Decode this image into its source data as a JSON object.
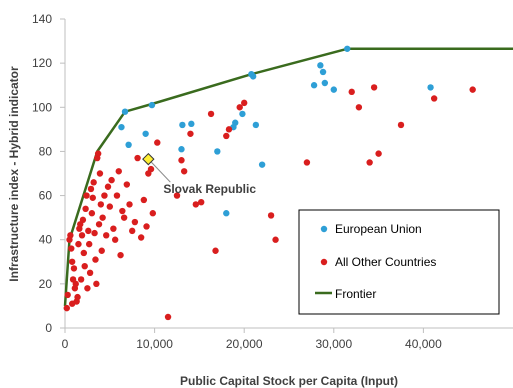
{
  "chart_data": {
    "type": "scatter",
    "xlabel": "Public Capital Stock per Capita (Input)",
    "ylabel": "Infrastructure index - Hybrid indicator",
    "xlim": [
      0,
      50000
    ],
    "ylim": [
      0,
      140
    ],
    "x_ticks": [
      0,
      10000,
      20000,
      30000,
      40000
    ],
    "x_tick_labels": [
      "0",
      "10,000",
      "20,000",
      "30,000",
      "40,000"
    ],
    "y_ticks": [
      0,
      20,
      40,
      60,
      80,
      100,
      120,
      140
    ],
    "y_tick_labels": [
      "0",
      "20",
      "40",
      "60",
      "80",
      "100",
      "120",
      "140"
    ],
    "grid": false,
    "legend_position": "bottom-right",
    "colors": {
      "eu": "#2e9fd6",
      "other": "#d91e1e",
      "frontier": "#3a6b1e",
      "highlight": "#ffef33",
      "axis": "#bfbfbf"
    },
    "series": [
      {
        "name": "European Union",
        "points": [
          [
            6300,
            91
          ],
          [
            6700,
            98
          ],
          [
            7100,
            83
          ],
          [
            9000,
            88
          ],
          [
            9700,
            101
          ],
          [
            13100,
            92
          ],
          [
            14100,
            92.5
          ],
          [
            13000,
            81
          ],
          [
            17000,
            80
          ],
          [
            18000,
            52
          ],
          [
            18800,
            91
          ],
          [
            19000,
            93
          ],
          [
            19800,
            97
          ],
          [
            20800,
            115
          ],
          [
            21000,
            114
          ],
          [
            21300,
            92
          ],
          [
            22000,
            74
          ],
          [
            27800,
            110
          ],
          [
            28500,
            119
          ],
          [
            28800,
            116
          ],
          [
            29000,
            111
          ],
          [
            30000,
            108
          ],
          [
            31500,
            126.5
          ],
          [
            40800,
            109
          ]
        ]
      },
      {
        "name": "All Other Countries",
        "points": [
          [
            200,
            9
          ],
          [
            300,
            15
          ],
          [
            500,
            40
          ],
          [
            600,
            42
          ],
          [
            700,
            36
          ],
          [
            800,
            11
          ],
          [
            800,
            30
          ],
          [
            900,
            22
          ],
          [
            1000,
            27
          ],
          [
            1100,
            18
          ],
          [
            1200,
            20
          ],
          [
            1300,
            12
          ],
          [
            1400,
            14
          ],
          [
            1500,
            38
          ],
          [
            1600,
            45
          ],
          [
            1700,
            47
          ],
          [
            1800,
            22
          ],
          [
            1900,
            42
          ],
          [
            2000,
            49
          ],
          [
            2100,
            34
          ],
          [
            2200,
            28
          ],
          [
            2300,
            54
          ],
          [
            2400,
            60
          ],
          [
            2500,
            18
          ],
          [
            2600,
            44
          ],
          [
            2700,
            38
          ],
          [
            2800,
            25
          ],
          [
            2900,
            63
          ],
          [
            3000,
            52
          ],
          [
            3100,
            59
          ],
          [
            3200,
            66
          ],
          [
            3300,
            43
          ],
          [
            3400,
            31
          ],
          [
            3500,
            20
          ],
          [
            3600,
            77
          ],
          [
            3700,
            79
          ],
          [
            3800,
            47
          ],
          [
            3900,
            70
          ],
          [
            4000,
            56
          ],
          [
            4100,
            35
          ],
          [
            4200,
            50
          ],
          [
            4400,
            60
          ],
          [
            4600,
            42
          ],
          [
            4800,
            64
          ],
          [
            5000,
            55
          ],
          [
            5200,
            67
          ],
          [
            5400,
            45
          ],
          [
            5600,
            40
          ],
          [
            5800,
            60
          ],
          [
            6000,
            71
          ],
          [
            6200,
            33
          ],
          [
            6400,
            53
          ],
          [
            6600,
            50
          ],
          [
            6900,
            65
          ],
          [
            7200,
            56
          ],
          [
            7500,
            44
          ],
          [
            7800,
            48
          ],
          [
            8100,
            77
          ],
          [
            8500,
            41
          ],
          [
            8800,
            58
          ],
          [
            9100,
            46
          ],
          [
            9300,
            70
          ],
          [
            9600,
            72
          ],
          [
            9800,
            52
          ],
          [
            10300,
            84
          ],
          [
            11500,
            5
          ],
          [
            12500,
            60
          ],
          [
            13000,
            76
          ],
          [
            13300,
            71
          ],
          [
            14000,
            88
          ],
          [
            14600,
            56
          ],
          [
            15200,
            57
          ],
          [
            16300,
            97
          ],
          [
            16800,
            35
          ],
          [
            18000,
            87
          ],
          [
            18300,
            90
          ],
          [
            19500,
            100
          ],
          [
            20000,
            102
          ],
          [
            23000,
            51
          ],
          [
            23500,
            40
          ],
          [
            27000,
            75
          ],
          [
            32000,
            107
          ],
          [
            32800,
            100
          ],
          [
            34000,
            75
          ],
          [
            34500,
            109
          ],
          [
            35000,
            79
          ],
          [
            37500,
            92
          ],
          [
            41200,
            104
          ],
          [
            45500,
            108
          ]
        ]
      },
      {
        "name": "Frontier",
        "points": [
          [
            0,
            10
          ],
          [
            500,
            40
          ],
          [
            3600,
            80
          ],
          [
            6700,
            98
          ],
          [
            9700,
            101.5
          ],
          [
            20800,
            115
          ],
          [
            31500,
            126.5
          ],
          [
            50000,
            126.5
          ]
        ]
      }
    ],
    "annotation": {
      "text": "Slovak Republic",
      "point": [
        9300,
        76.5
      ]
    }
  }
}
